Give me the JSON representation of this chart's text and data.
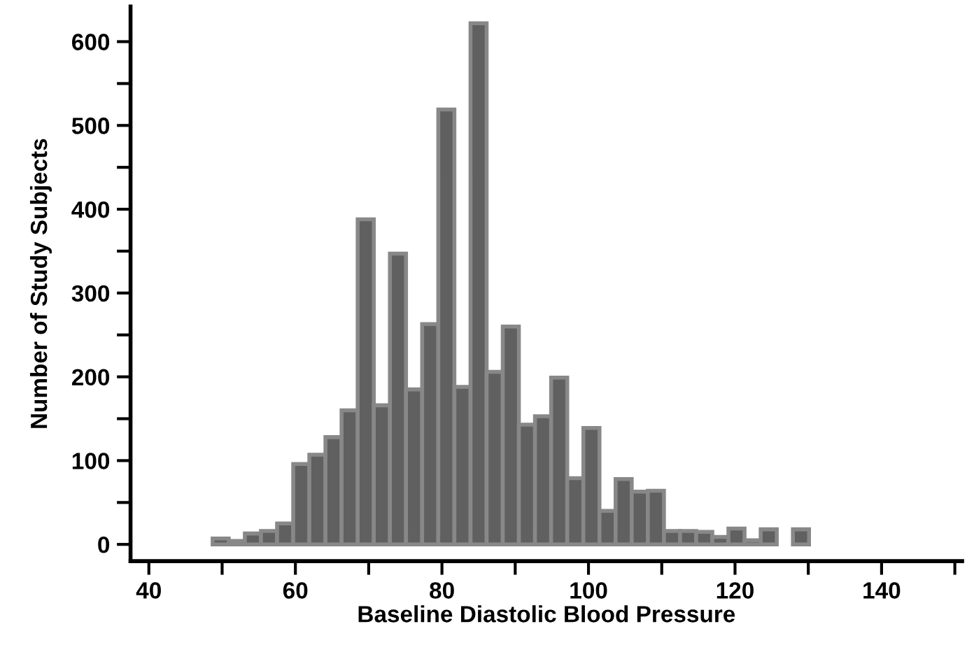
{
  "chart_data": {
    "type": "histogram",
    "xlabel": "Baseline Diastolic Blood Pressure",
    "ylabel": "Number of Study Subjects",
    "bins": [
      48.7,
      50.9,
      53.1,
      55.3,
      57.5,
      59.7,
      61.9,
      64.1,
      66.3,
      68.5,
      70.7,
      72.9,
      75.1,
      77.3,
      79.5,
      81.7,
      83.9,
      86.1,
      88.3,
      90.5,
      92.7,
      94.9,
      97.1,
      99.3,
      101.5,
      103.7,
      105.9,
      108.1,
      110.3,
      112.5,
      114.7,
      116.9,
      119.1,
      121.3,
      123.5,
      125.7,
      127.9,
      130.1
    ],
    "values": [
      7,
      4,
      13,
      16,
      25,
      96,
      107,
      128,
      160,
      388,
      166,
      347,
      185,
      263,
      519,
      188,
      622,
      206,
      260,
      143,
      153,
      199,
      79,
      139,
      40,
      78,
      63,
      64,
      16,
      16,
      15,
      9,
      19,
      5,
      18,
      0,
      18
    ],
    "color": "#606060",
    "xlim": [
      37.5,
      151
    ],
    "ylim": [
      -20,
      642
    ],
    "xticks": [
      40,
      {
        "value": 50,
        "label": null
      },
      60,
      {
        "value": 70,
        "label": null
      },
      80,
      {
        "value": 90,
        "label": null
      },
      100,
      {
        "value": 110,
        "label": null
      },
      120,
      {
        "value": 130,
        "label": null
      },
      140,
      {
        "value": 150,
        "label": null
      }
    ],
    "yticks": [
      0,
      {
        "value": 50,
        "label": null
      },
      100,
      {
        "value": 150,
        "label": null
      },
      200,
      {
        "value": 250,
        "label": null
      },
      300,
      {
        "value": 350,
        "label": null
      },
      400,
      {
        "value": 450,
        "label": null
      },
      500,
      {
        "value": 550,
        "label": null
      },
      600
    ],
    "grid": false,
    "legend": false
  }
}
